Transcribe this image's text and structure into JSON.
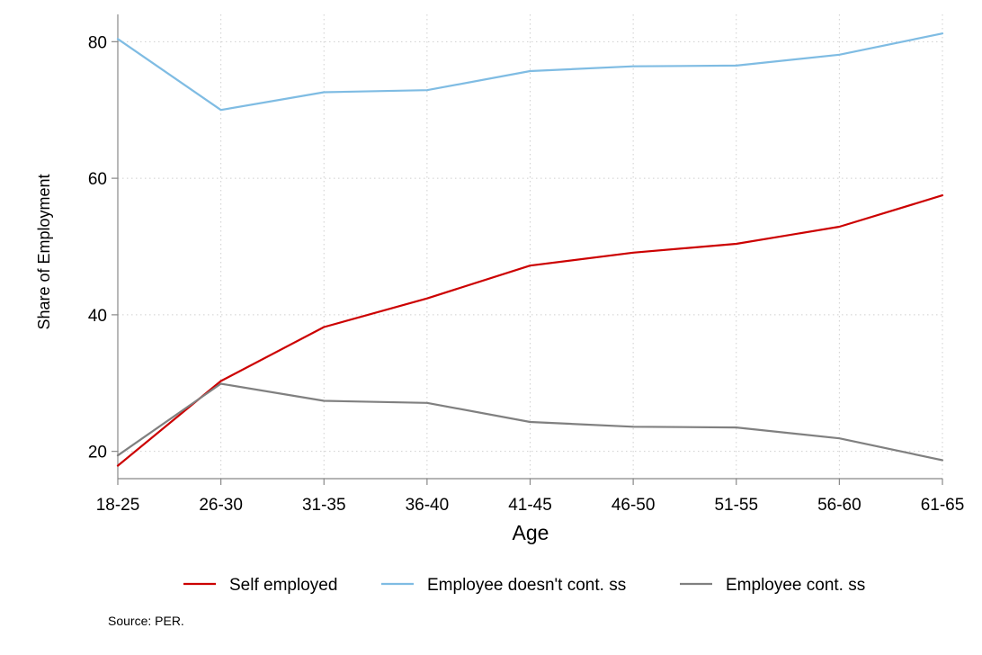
{
  "chart_data": {
    "type": "line",
    "xlabel": "Age",
    "ylabel": "Share of Employment",
    "categories": [
      "18-25",
      "26-30",
      "31-35",
      "36-40",
      "41-45",
      "46-50",
      "51-55",
      "56-60",
      "61-65"
    ],
    "ylim": [
      16,
      84
    ],
    "yticks": [
      20,
      40,
      60,
      80
    ],
    "grid": true,
    "legend_position": "bottom",
    "series": [
      {
        "name": "Self employed",
        "color": "#cc0000",
        "values": [
          17.9,
          30.3,
          38.2,
          42.4,
          47.2,
          49.1,
          50.4,
          52.9,
          57.5
        ]
      },
      {
        "name": "Employee doesn't cont. ss",
        "color": "#7fbce3",
        "values": [
          80.4,
          70.0,
          72.6,
          72.9,
          75.7,
          76.4,
          76.5,
          78.1,
          81.2
        ]
      },
      {
        "name": "Employee cont. ss",
        "color": "#808080",
        "values": [
          19.4,
          29.9,
          27.4,
          27.1,
          24.3,
          23.6,
          23.5,
          21.9,
          18.7
        ]
      }
    ],
    "note": "Source: PER."
  }
}
